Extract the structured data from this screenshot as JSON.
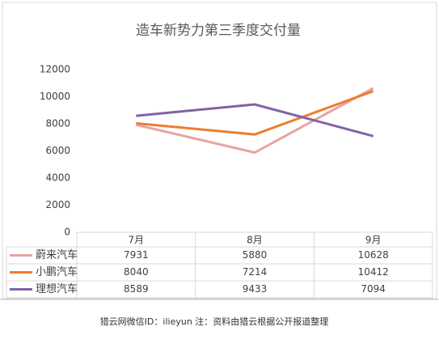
{
  "chart_data": {
    "type": "line",
    "title": "造车新势力第三季度交付量",
    "categories": [
      "7月",
      "8月",
      "9月"
    ],
    "series": [
      {
        "name": "蔚来汽车",
        "color": "#e8a3a3",
        "values": [
          7931,
          5880,
          10628
        ]
      },
      {
        "name": "小鹏汽车",
        "color": "#ed7d31",
        "values": [
          8040,
          7214,
          10412
        ]
      },
      {
        "name": "理想汽车",
        "color": "#8064a2",
        "values": [
          8589,
          9433,
          7094
        ]
      }
    ],
    "ylim": [
      0,
      12000
    ],
    "yticks": [
      0,
      2000,
      4000,
      6000,
      8000,
      10000,
      12000
    ],
    "grid": false,
    "footnote": "猎云网微信ID：ilieyun 注：资料由猎云根据公开报道整理"
  }
}
